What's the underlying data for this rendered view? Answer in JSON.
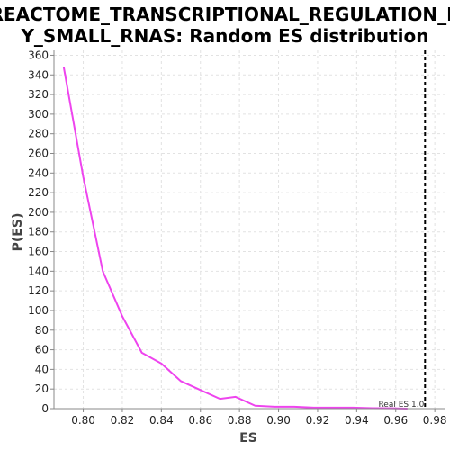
{
  "chart_data": {
    "type": "line",
    "title_line1": "REACTOME_TRANSCRIPTIONAL_REGULATION_B",
    "title_line2": "Y_SMALL_RNAS: Random ES distribution",
    "xlabel": "ES",
    "ylabel": "P(ES)",
    "xlim": [
      0.785,
      0.985
    ],
    "ylim": [
      0,
      365
    ],
    "xticks": [
      0.8,
      0.82,
      0.84,
      0.86,
      0.88,
      0.9,
      0.92,
      0.94,
      0.96,
      0.98
    ],
    "xtick_labels": [
      "0.80",
      "0.82",
      "0.84",
      "0.86",
      "0.88",
      "0.90",
      "0.92",
      "0.94",
      "0.96",
      "0.98"
    ],
    "yticks": [
      0,
      20,
      40,
      60,
      80,
      100,
      120,
      140,
      160,
      180,
      200,
      220,
      240,
      260,
      280,
      300,
      320,
      340,
      360
    ],
    "ytick_labels": [
      "0",
      "20",
      "40",
      "60",
      "80",
      "100",
      "120",
      "140",
      "160",
      "180",
      "200",
      "220",
      "240",
      "260",
      "280",
      "300",
      "320",
      "340",
      "360"
    ],
    "grid": true,
    "series": [
      {
        "color": "#ee44ee",
        "x": [
          0.79,
          0.8,
          0.81,
          0.82,
          0.83,
          0.84,
          0.85,
          0.86,
          0.87,
          0.878,
          0.888,
          0.898,
          0.908,
          0.918,
          0.928,
          0.938,
          0.948,
          0.958,
          0.966
        ],
        "y": [
          348,
          236,
          140,
          94,
          57,
          46,
          28,
          19,
          10,
          12,
          3,
          2,
          2,
          1,
          1,
          1,
          0.5,
          0.3,
          0
        ]
      }
    ],
    "real_es": {
      "x": 0.975,
      "label": "Real ES 1.0",
      "color": "#000000"
    }
  }
}
